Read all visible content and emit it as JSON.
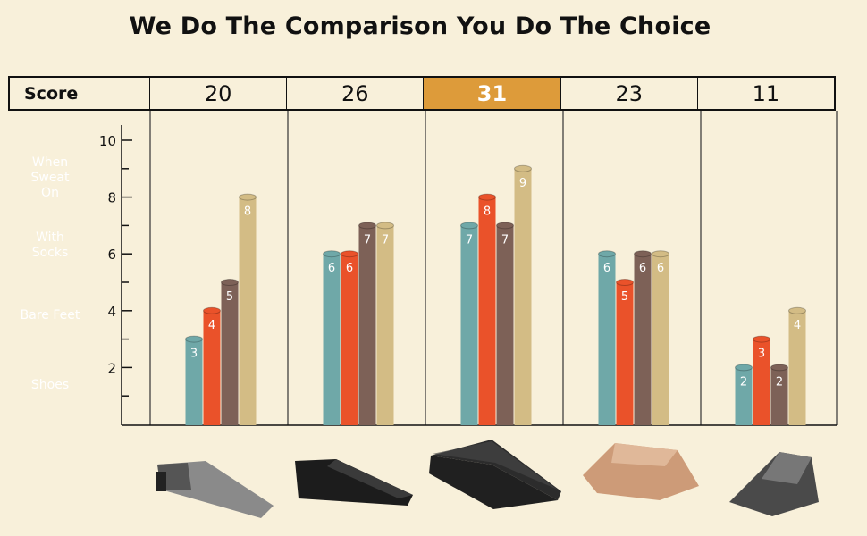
{
  "title": "We Do The Comparison You Do The Choice",
  "score_label": "Score",
  "scores": [
    "20",
    "26",
    "31",
    "23",
    "11"
  ],
  "highlight_index": 2,
  "colors": {
    "background": "#f8f0da",
    "highlight": "#dd9b3a",
    "when_sweat_on": "#6fa8a8",
    "with_socks": "#ea522a",
    "bare_feet": "#7d6157",
    "shoes": "#d3bc85"
  },
  "legend": [
    {
      "label": "When Sweat On",
      "color": "#6fa8a8"
    },
    {
      "label": "With Socks",
      "color": "#ea522a"
    },
    {
      "label": "Bare Feet",
      "color": "#7d6157"
    },
    {
      "label": "Shoes",
      "color": "#d3bc85"
    }
  ],
  "product_icons": [
    "grey-wedge-image",
    "black-wedge-image",
    "textured-black-ramp-image",
    "tan-wedge-image",
    "dark-grey-wedge-image"
  ],
  "chart_data": {
    "type": "bar",
    "categories": [
      "20",
      "26",
      "31",
      "23",
      "11"
    ],
    "series": [
      {
        "name": "When Sweat On",
        "values": [
          3,
          6,
          7,
          6,
          2
        ]
      },
      {
        "name": "With Socks",
        "values": [
          4,
          6,
          8,
          5,
          3
        ]
      },
      {
        "name": "Bare Feet",
        "values": [
          5,
          7,
          7,
          6,
          2
        ]
      },
      {
        "name": "Shoes",
        "values": [
          8,
          7,
          9,
          6,
          4
        ]
      }
    ],
    "yticks": [
      "2",
      "4",
      "6",
      "8",
      "10"
    ],
    "ylim": [
      0,
      10
    ],
    "grid": false,
    "legend_position": "left"
  }
}
